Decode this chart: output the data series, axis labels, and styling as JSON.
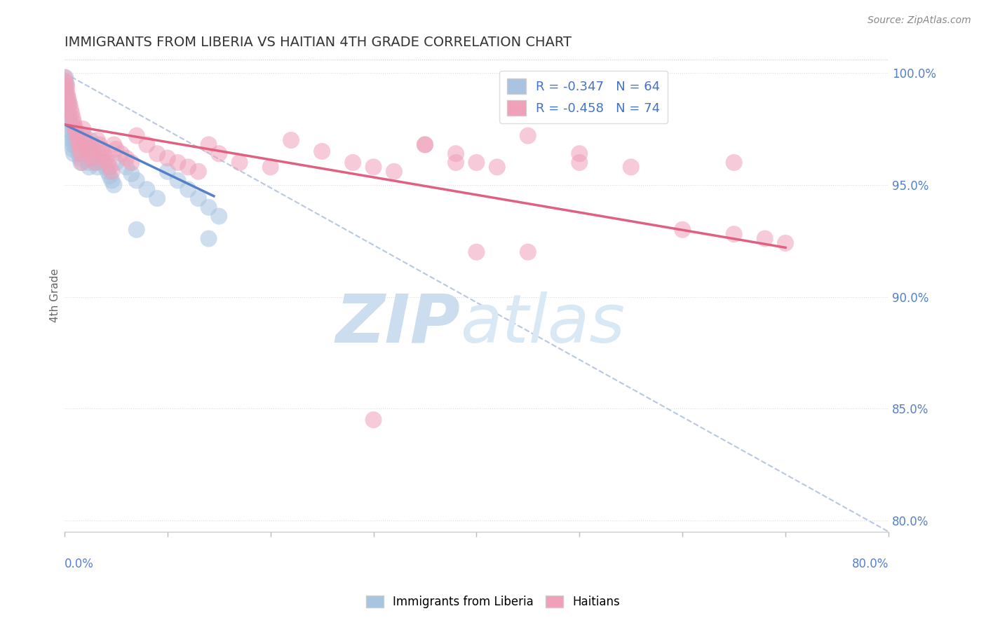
{
  "title": "IMMIGRANTS FROM LIBERIA VS HAITIAN 4TH GRADE CORRELATION CHART",
  "source_text": "Source: ZipAtlas.com",
  "ylabel": "4th Grade",
  "legend_blue_label": "Immigrants from Liberia",
  "legend_pink_label": "Haitians",
  "R_blue": -0.347,
  "N_blue": 64,
  "R_pink": -0.458,
  "N_pink": 74,
  "blue_color": "#a8c4e0",
  "blue_line_color": "#5580c8",
  "pink_color": "#f0a0b8",
  "pink_line_color": "#e06080",
  "dashed_color": "#b8c8e0",
  "xlim": [
    0.0,
    0.8
  ],
  "ylim": [
    0.795,
    1.006
  ],
  "yticks": [
    0.8,
    0.85,
    0.9,
    0.95,
    1.0
  ],
  "ytick_labels": [
    "80.0%",
    "85.0%",
    "90.0%",
    "95.0%",
    "100.0%"
  ],
  "blue_scatter_x": [
    0.0,
    0.001,
    0.001,
    0.002,
    0.002,
    0.003,
    0.003,
    0.004,
    0.004,
    0.005,
    0.005,
    0.006,
    0.006,
    0.007,
    0.007,
    0.008,
    0.008,
    0.009,
    0.009,
    0.01,
    0.01,
    0.011,
    0.012,
    0.013,
    0.014,
    0.015,
    0.016,
    0.017,
    0.018,
    0.019,
    0.02,
    0.021,
    0.022,
    0.023,
    0.024,
    0.025,
    0.026,
    0.027,
    0.028,
    0.029,
    0.03,
    0.032,
    0.034,
    0.036,
    0.038,
    0.04,
    0.042,
    0.044,
    0.046,
    0.048,
    0.05,
    0.06,
    0.065,
    0.07,
    0.08,
    0.09,
    0.1,
    0.11,
    0.12,
    0.13,
    0.14,
    0.15,
    0.07,
    0.14
  ],
  "blue_scatter_y": [
    0.995,
    0.998,
    0.993,
    0.995,
    0.99,
    0.988,
    0.984,
    0.986,
    0.982,
    0.98,
    0.978,
    0.976,
    0.974,
    0.972,
    0.97,
    0.968,
    0.966,
    0.964,
    0.97,
    0.975,
    0.972,
    0.97,
    0.968,
    0.966,
    0.964,
    0.962,
    0.96,
    0.972,
    0.97,
    0.968,
    0.966,
    0.964,
    0.962,
    0.96,
    0.958,
    0.97,
    0.968,
    0.966,
    0.964,
    0.962,
    0.96,
    0.958,
    0.964,
    0.962,
    0.96,
    0.958,
    0.956,
    0.954,
    0.952,
    0.95,
    0.96,
    0.958,
    0.955,
    0.952,
    0.948,
    0.944,
    0.956,
    0.952,
    0.948,
    0.944,
    0.94,
    0.936,
    0.93,
    0.926
  ],
  "blue_line_x": [
    0.0,
    0.145
  ],
  "blue_line_y": [
    0.977,
    0.945
  ],
  "pink_scatter_x": [
    0.0,
    0.001,
    0.002,
    0.002,
    0.003,
    0.004,
    0.005,
    0.006,
    0.007,
    0.008,
    0.009,
    0.01,
    0.011,
    0.012,
    0.013,
    0.014,
    0.015,
    0.016,
    0.017,
    0.018,
    0.019,
    0.02,
    0.022,
    0.024,
    0.026,
    0.028,
    0.03,
    0.032,
    0.034,
    0.036,
    0.038,
    0.04,
    0.042,
    0.044,
    0.046,
    0.048,
    0.05,
    0.055,
    0.06,
    0.065,
    0.07,
    0.08,
    0.09,
    0.1,
    0.11,
    0.12,
    0.13,
    0.14,
    0.15,
    0.17,
    0.2,
    0.22,
    0.25,
    0.28,
    0.3,
    0.32,
    0.35,
    0.38,
    0.4,
    0.42,
    0.45,
    0.5,
    0.55,
    0.6,
    0.65,
    0.68,
    0.7,
    0.35,
    0.5,
    0.65,
    0.3,
    0.4,
    0.45,
    0.38
  ],
  "pink_scatter_y": [
    0.998,
    0.996,
    0.994,
    0.992,
    0.99,
    0.988,
    0.986,
    0.984,
    0.982,
    0.98,
    0.978,
    0.976,
    0.974,
    0.972,
    0.97,
    0.968,
    0.966,
    0.964,
    0.96,
    0.975,
    0.972,
    0.97,
    0.968,
    0.966,
    0.964,
    0.962,
    0.96,
    0.97,
    0.968,
    0.966,
    0.964,
    0.962,
    0.96,
    0.958,
    0.956,
    0.968,
    0.966,
    0.964,
    0.962,
    0.96,
    0.972,
    0.968,
    0.964,
    0.962,
    0.96,
    0.958,
    0.956,
    0.968,
    0.964,
    0.96,
    0.958,
    0.97,
    0.965,
    0.96,
    0.958,
    0.956,
    0.968,
    0.964,
    0.96,
    0.958,
    0.972,
    0.96,
    0.958,
    0.93,
    0.928,
    0.926,
    0.924,
    0.968,
    0.964,
    0.96,
    0.845,
    0.92,
    0.92,
    0.96
  ],
  "pink_line_x": [
    0.0,
    0.7
  ],
  "pink_line_y": [
    0.977,
    0.922
  ],
  "dash_line_x": [
    0.0,
    0.8
  ],
  "dash_line_y": [
    1.0,
    0.795
  ]
}
